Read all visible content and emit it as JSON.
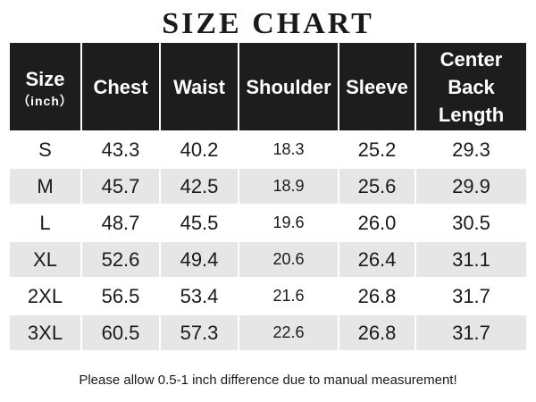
{
  "title": "SIZE CHART",
  "header": {
    "size_label": "Size",
    "size_unit": "（inch）",
    "chest": "Chest",
    "waist": "Waist",
    "shoulder": "Shoulder",
    "sleeve": "Sleeve",
    "center_back_line1": "Center",
    "center_back_line2": "Back",
    "center_back_line3": "Length"
  },
  "rows": [
    {
      "size": "S",
      "chest": "43.3",
      "waist": "40.2",
      "shoulder": "18.3",
      "sleeve": "25.2",
      "length": "29.3"
    },
    {
      "size": "M",
      "chest": "45.7",
      "waist": "42.5",
      "shoulder": "18.9",
      "sleeve": "25.6",
      "length": "29.9"
    },
    {
      "size": "L",
      "chest": "48.7",
      "waist": "45.5",
      "shoulder": "19.6",
      "sleeve": "26.0",
      "length": "30.5"
    },
    {
      "size": "XL",
      "chest": "52.6",
      "waist": "49.4",
      "shoulder": "20.6",
      "sleeve": "26.4",
      "length": "31.1"
    },
    {
      "size": "2XL",
      "chest": "56.5",
      "waist": "53.4",
      "shoulder": "21.6",
      "sleeve": "26.8",
      "length": "31.7"
    },
    {
      "size": "3XL",
      "chest": "60.5",
      "waist": "57.3",
      "shoulder": "22.6",
      "sleeve": "26.8",
      "length": "31.7"
    }
  ],
  "note": "Please allow 0.5-1 inch difference due to manual measurement!",
  "colors": {
    "header_bg": "#1d1d1d",
    "stripe_bg": "#e6e6e6"
  }
}
